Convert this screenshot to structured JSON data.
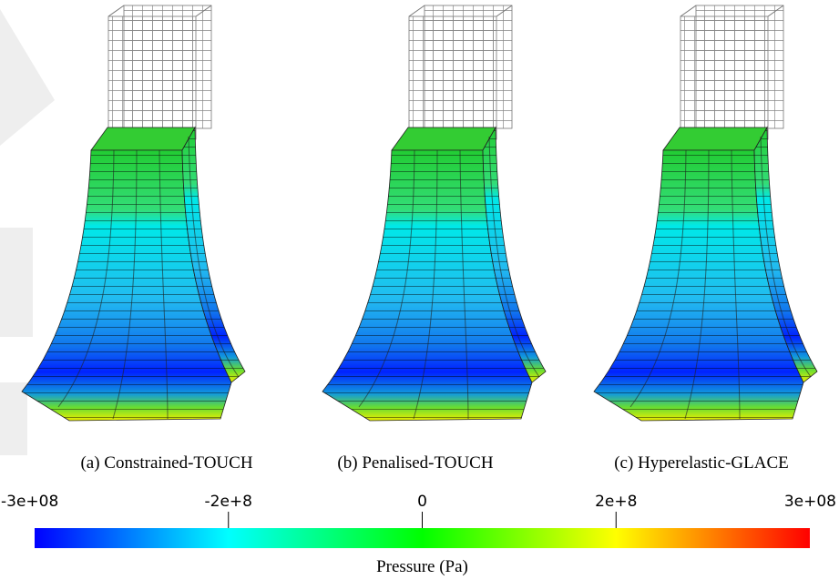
{
  "panels": [
    {
      "caption": "(a) Constrained-TOUCH"
    },
    {
      "caption": "(b) Penalised-TOUCH"
    },
    {
      "caption": "(c) Hyperelastic-GLACE"
    }
  ],
  "colorbar": {
    "label": "Pressure (Pa)",
    "lim": [
      -400000000,
      400000000
    ],
    "ticks": [
      {
        "value": -200000000,
        "label": "-2e+8"
      },
      0,
      {
        "value": 200000000,
        "label": "2e+8"
      }
    ],
    "range_labels": [
      "-3e+08",
      "3e+08"
    ],
    "colormap": [
      "#0000ff",
      "#00ffff",
      "#00ff00",
      "#ffff00",
      "#ff0000"
    ]
  }
}
